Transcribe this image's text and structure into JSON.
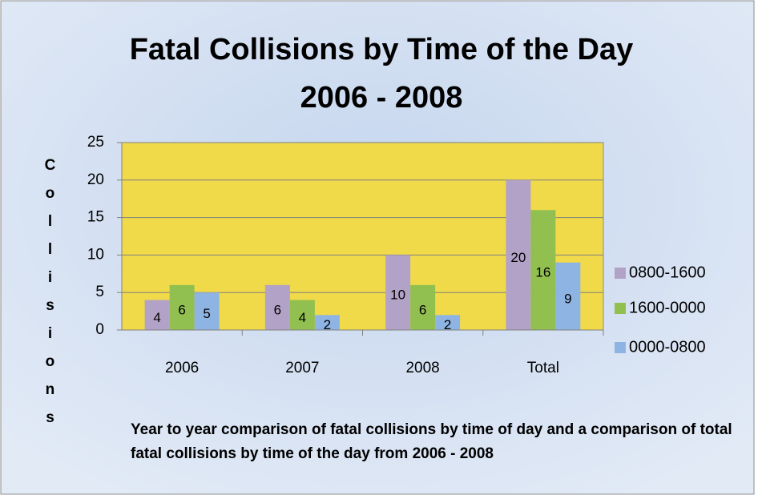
{
  "chart_data": {
    "type": "bar",
    "title": [
      "Fatal Collisions by Time of the Day",
      "2006 - 2008"
    ],
    "ylabel": "Collisions",
    "caption": "Year to year comparison of fatal collisions by time of day and a comparison of total fatal collisions by time of the day from 2006 - 2008",
    "categories": [
      "2006",
      "2007",
      "2008",
      "Total"
    ],
    "series": [
      {
        "name": "0800-1600",
        "color": "#b3a2c7",
        "values": [
          4,
          6,
          10,
          20
        ]
      },
      {
        "name": "1600-0000",
        "color": "#92c050",
        "values": [
          6,
          4,
          6,
          16
        ]
      },
      {
        "name": "0000-0800",
        "color": "#8eb4e3",
        "values": [
          5,
          2,
          2,
          9
        ]
      }
    ],
    "ylim": [
      0,
      25
    ],
    "yticks": [
      0,
      5,
      10,
      15,
      20,
      25
    ],
    "grid": true,
    "legend": "right",
    "plot_color": "#f0da4a"
  }
}
